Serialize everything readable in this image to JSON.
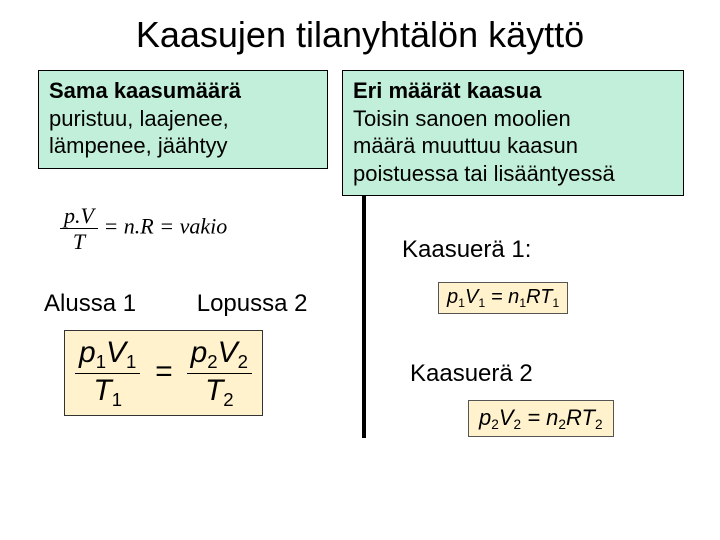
{
  "title": "Kaasujen tilanyhtälön käyttö",
  "left_box": {
    "bold": "Sama kaasumäärä",
    "line2": "puristuu, laajenee,",
    "line3": "lämpenee, jäähtyy"
  },
  "right_box": {
    "bold": "Eri määrät kaasua",
    "line2": "Toisin sanoen moolien",
    "line3": "määrä muuttuu kaasun",
    "line4": "poistuessa tai lisääntyessä"
  },
  "eq1": {
    "num": "p.V",
    "den": "T",
    "rhs": "= n.R = vakio"
  },
  "labels": {
    "l1": "Alussa 1",
    "l2": "Lopussa 2"
  },
  "eq2": {
    "lhs_num_p": "p",
    "lhs_num_psub": "1",
    "lhs_num_v": "V",
    "lhs_num_vsub": "1",
    "lhs_den_t": "T",
    "lhs_den_tsub": "1",
    "rhs_num_p": "p",
    "rhs_num_psub": "2",
    "rhs_num_v": "V",
    "rhs_num_vsub": "2",
    "rhs_den_t": "T",
    "rhs_den_tsub": "2"
  },
  "kaasu1": "Kaasuerä 1:",
  "kaasu2": "Kaasuerä 2",
  "eq3": {
    "p": "p",
    "psub": "1",
    "v": "V",
    "vsub": "1",
    "eq": " = ",
    "n": "n",
    "nsub": "1",
    "r": "R",
    "t": "T",
    "tsub": "1"
  },
  "eq4": {
    "p": "p",
    "psub": "2",
    "v": "V",
    "vsub": "2",
    "eq": " = ",
    "n": "n",
    "nsub": "2",
    "r": "R",
    "t": "T",
    "tsub": "2"
  },
  "colors": {
    "box_bg": "#c2efda",
    "eq_bg": "#fff2cc",
    "text": "#000000"
  }
}
